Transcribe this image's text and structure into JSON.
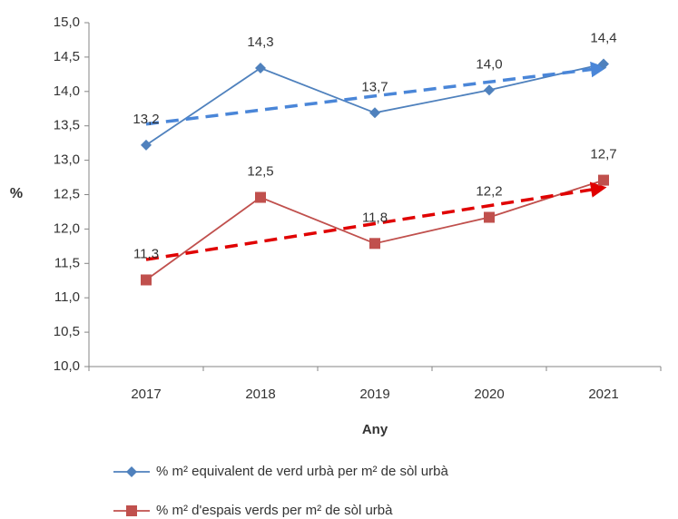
{
  "chart_data": {
    "type": "line",
    "x_label": "Any",
    "y_label": "%",
    "categories": [
      "2017",
      "2018",
      "2019",
      "2020",
      "2021"
    ],
    "series": [
      {
        "name": "% m² equivalent de verd urbà per m² de sòl urbà",
        "color": "#4f81bd",
        "trend_color": "#4a86d8",
        "marker": "diamond",
        "values": [
          13.22,
          14.34,
          13.69,
          14.02,
          14.4
        ],
        "value_labels": [
          "13,2",
          "14,3",
          "13,7",
          "14,0",
          "14,4"
        ]
      },
      {
        "name": "% m² d'espais verds per m² de sòl urbà",
        "color": "#c0504d",
        "trend_color": "#e00000",
        "marker": "square",
        "values": [
          11.26,
          12.46,
          11.79,
          12.17,
          12.71
        ],
        "value_labels": [
          "11,3",
          "12,5",
          "11,8",
          "12,2",
          "12,7"
        ]
      }
    ],
    "trendline": true,
    "ylim": [
      10,
      15
    ],
    "yticks": [
      {
        "value": 10,
        "label": "10,0"
      },
      {
        "value": 10.5,
        "label": "10,5"
      },
      {
        "value": 11,
        "label": "11,0"
      },
      {
        "value": 11.5,
        "label": "11,5"
      },
      {
        "value": 12,
        "label": "12,0"
      },
      {
        "value": 12.5,
        "label": "12,5"
      },
      {
        "value": 13,
        "label": "13,0"
      },
      {
        "value": 13.5,
        "label": "13,5"
      },
      {
        "value": 14,
        "label": "14,0"
      },
      {
        "value": 14.5,
        "label": "14,5"
      },
      {
        "value": 15,
        "label": "15,0"
      }
    ],
    "grid": false,
    "legend": "bottom"
  }
}
